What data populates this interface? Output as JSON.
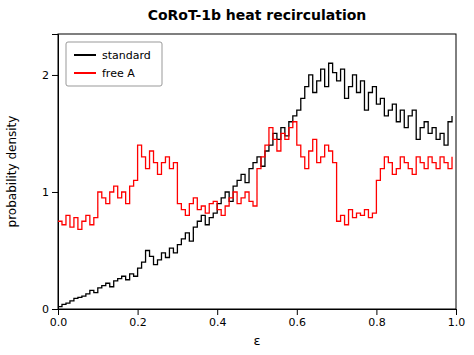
{
  "chart_data": {
    "type": "step",
    "title": "CoRoT-1b heat recirculation",
    "x_label": "ε",
    "y_label": "probability density",
    "x": [
      0,
      0.01,
      0.02,
      0.03,
      0.04,
      0.05,
      0.06,
      0.07,
      0.08,
      0.09,
      0.1,
      0.11,
      0.12,
      0.13,
      0.14,
      0.15,
      0.16,
      0.17,
      0.18,
      0.19,
      0.2,
      0.21,
      0.22,
      0.23,
      0.24,
      0.25,
      0.26,
      0.27,
      0.28,
      0.29,
      0.3,
      0.31,
      0.32,
      0.33,
      0.34,
      0.35,
      0.36,
      0.37,
      0.38,
      0.39,
      0.4,
      0.41,
      0.42,
      0.43,
      0.44,
      0.45,
      0.46,
      0.47,
      0.48,
      0.49,
      0.5,
      0.51,
      0.52,
      0.53,
      0.54,
      0.55,
      0.56,
      0.57,
      0.58,
      0.59,
      0.6,
      0.61,
      0.62,
      0.63,
      0.64,
      0.65,
      0.66,
      0.67,
      0.68,
      0.69,
      0.7,
      0.71,
      0.72,
      0.73,
      0.74,
      0.75,
      0.76,
      0.77,
      0.78,
      0.79,
      0.8,
      0.81,
      0.82,
      0.83,
      0.84,
      0.85,
      0.86,
      0.87,
      0.88,
      0.89,
      0.9,
      0.91,
      0.92,
      0.93,
      0.94,
      0.95,
      0.96,
      0.97,
      0.98,
      0.99
    ],
    "series": [
      {
        "name": "standard",
        "color": "black",
        "values": [
          0.02,
          0.04,
          0.05,
          0.07,
          0.09,
          0.1,
          0.11,
          0.13,
          0.16,
          0.14,
          0.18,
          0.2,
          0.22,
          0.19,
          0.24,
          0.26,
          0.28,
          0.25,
          0.3,
          0.28,
          0.35,
          0.4,
          0.5,
          0.45,
          0.38,
          0.42,
          0.48,
          0.44,
          0.52,
          0.48,
          0.55,
          0.6,
          0.65,
          0.58,
          0.7,
          0.75,
          0.8,
          0.72,
          0.78,
          0.82,
          0.9,
          0.95,
          1.0,
          0.92,
          1.05,
          1.1,
          1.15,
          1.08,
          1.2,
          1.25,
          1.3,
          1.22,
          1.35,
          1.4,
          1.5,
          1.45,
          1.55,
          1.48,
          1.6,
          1.65,
          1.7,
          1.8,
          1.9,
          2.0,
          1.85,
          1.95,
          2.05,
          1.9,
          2.1,
          2.02,
          1.95,
          2.05,
          1.8,
          1.9,
          2.0,
          1.85,
          1.95,
          1.7,
          1.85,
          1.9,
          1.75,
          1.8,
          1.65,
          1.7,
          1.75,
          1.6,
          1.7,
          1.55,
          1.65,
          1.7,
          1.45,
          1.55,
          1.6,
          1.5,
          1.55,
          1.45,
          1.5,
          1.4,
          1.6,
          1.65
        ]
      },
      {
        "name": "free A",
        "color": "red",
        "values": [
          0.75,
          0.72,
          0.8,
          0.7,
          0.78,
          0.68,
          0.75,
          0.8,
          0.72,
          0.78,
          1.0,
          0.95,
          0.9,
          1.0,
          1.05,
          0.95,
          1.0,
          0.9,
          1.05,
          1.1,
          1.4,
          1.3,
          1.2,
          1.35,
          1.25,
          1.15,
          1.25,
          1.3,
          1.2,
          1.25,
          0.9,
          0.85,
          0.8,
          0.9,
          0.95,
          0.85,
          0.88,
          0.82,
          0.9,
          0.92,
          0.85,
          0.8,
          0.88,
          0.95,
          1.0,
          0.9,
          0.95,
          1.0,
          0.92,
          0.88,
          1.2,
          1.3,
          1.4,
          1.55,
          1.45,
          1.35,
          1.5,
          1.45,
          1.55,
          1.6,
          1.4,
          1.3,
          1.2,
          1.35,
          1.45,
          1.25,
          1.3,
          1.4,
          1.35,
          1.25,
          0.75,
          0.8,
          0.72,
          0.85,
          0.78,
          0.82,
          0.8,
          0.85,
          0.78,
          0.82,
          1.1,
          1.2,
          1.3,
          1.25,
          1.15,
          1.2,
          1.3,
          1.25,
          1.2,
          1.15,
          1.3,
          1.25,
          1.2,
          1.3,
          1.25,
          1.2,
          1.3,
          1.25,
          1.2,
          1.3
        ]
      }
    ],
    "xlim": [
      0,
      1
    ],
    "ylim": [
      0,
      2.35
    ],
    "xticks": [
      {
        "value": 0,
        "label": "0.0"
      },
      0.2,
      0.4,
      0.6,
      0.8,
      {
        "value": 1,
        "label": "1.0"
      }
    ],
    "yticks": [
      0,
      1,
      2
    ],
    "grid": false,
    "legend": "upper-left"
  }
}
